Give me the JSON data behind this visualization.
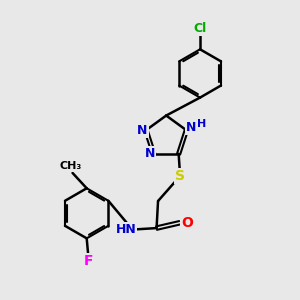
{
  "bg_color": "#e8e8e8",
  "bond_color": "#000000",
  "bond_width": 1.8,
  "atom_colors": {
    "N": "#0000cc",
    "O": "#ff0000",
    "S": "#cccc00",
    "Cl": "#00aa00",
    "F": "#ff00ff",
    "C": "#000000",
    "H": "#000000"
  },
  "font_size": 9,
  "fig_size": [
    3.0,
    3.0
  ],
  "dpi": 100,
  "xlim": [
    0,
    10
  ],
  "ylim": [
    0,
    10
  ]
}
